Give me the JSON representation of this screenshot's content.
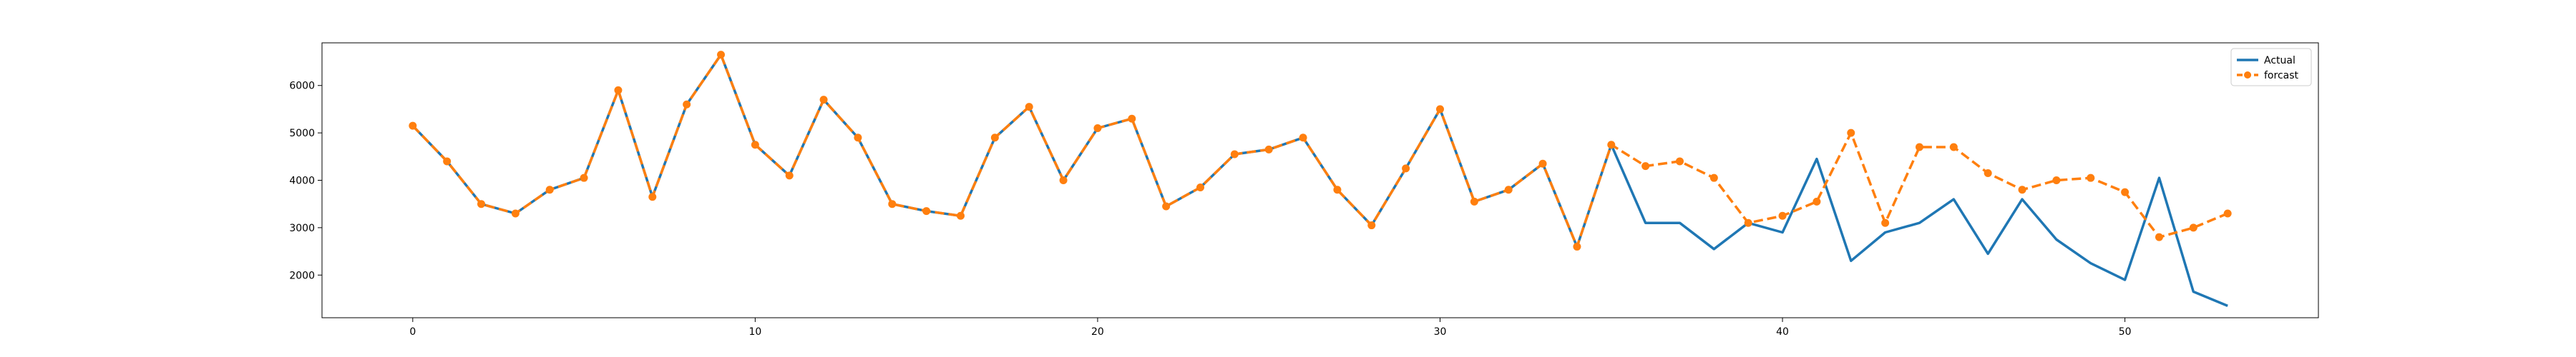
{
  "chart_data": {
    "type": "line",
    "title": "",
    "xlabel": "",
    "ylabel": "",
    "xlim": [
      -2.65,
      55.65
    ],
    "ylim": [
      1100,
      6900
    ],
    "xticks": [
      0,
      10,
      20,
      30,
      40,
      50
    ],
    "yticks": [
      2000,
      3000,
      4000,
      5000,
      6000
    ],
    "legend": "top-right",
    "grid": false,
    "series": [
      {
        "name": "Actual",
        "color": "#1f77b4",
        "style": "solid",
        "marker": "none",
        "x": [
          0,
          1,
          2,
          3,
          4,
          5,
          6,
          7,
          8,
          9,
          10,
          11,
          12,
          13,
          14,
          15,
          16,
          17,
          18,
          19,
          20,
          21,
          22,
          23,
          24,
          25,
          26,
          27,
          28,
          29,
          30,
          31,
          32,
          33,
          34,
          35,
          36,
          37,
          38,
          39,
          40,
          41,
          42,
          43,
          44,
          45,
          46,
          47,
          48,
          49,
          50,
          51,
          52,
          53
        ],
        "values": [
          5150,
          4400,
          3500,
          3300,
          3800,
          4050,
          5900,
          3650,
          5600,
          6650,
          4750,
          4100,
          5700,
          4900,
          3500,
          3350,
          3250,
          4900,
          5550,
          4000,
          5100,
          5300,
          3450,
          3850,
          4550,
          4650,
          4900,
          3800,
          3050,
          4250,
          5500,
          3550,
          3800,
          4350,
          2600,
          4750,
          3100,
          3100,
          2550,
          3100,
          2900,
          4450,
          2300,
          2900,
          3100,
          3600,
          2450,
          3600,
          2750,
          2250,
          1900,
          4050,
          1650,
          1350
        ]
      },
      {
        "name": "forcast",
        "color": "#ff7f0e",
        "style": "dashed",
        "marker": "circle",
        "x": [
          0,
          1,
          2,
          3,
          4,
          5,
          6,
          7,
          8,
          9,
          10,
          11,
          12,
          13,
          14,
          15,
          16,
          17,
          18,
          19,
          20,
          21,
          22,
          23,
          24,
          25,
          26,
          27,
          28,
          29,
          30,
          31,
          32,
          33,
          34,
          35,
          36,
          37,
          38,
          39,
          40,
          41,
          42,
          43,
          44,
          45,
          46,
          47,
          48,
          49,
          50,
          51,
          52,
          53
        ],
        "values": [
          5150,
          4400,
          3500,
          3300,
          3800,
          4050,
          5900,
          3650,
          5600,
          6650,
          4750,
          4100,
          5700,
          4900,
          3500,
          3350,
          3250,
          4900,
          5550,
          4000,
          5100,
          5300,
          3450,
          3850,
          4550,
          4650,
          4900,
          3800,
          3050,
          4250,
          5500,
          3550,
          3800,
          4350,
          2600,
          4750,
          4300,
          4400,
          4050,
          3100,
          3250,
          3550,
          5000,
          3100,
          4700,
          4700,
          4150,
          3800,
          4000,
          4050,
          3750,
          2800,
          3000,
          3300
        ]
      }
    ]
  }
}
